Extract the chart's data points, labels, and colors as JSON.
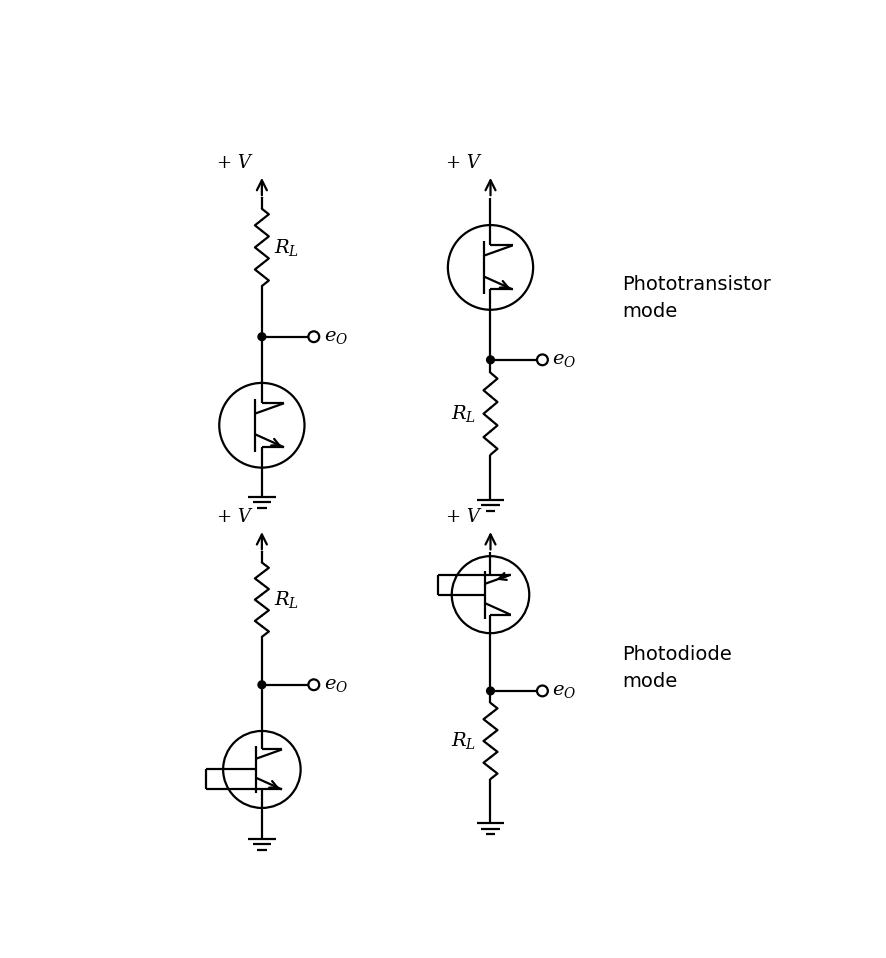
{
  "bg_color": "#ffffff",
  "line_color": "#000000",
  "lw": 1.6,
  "fig_w": 8.86,
  "fig_h": 9.58,
  "dpi": 100,
  "label_V": "+ V",
  "label_RL": "$R_L$",
  "label_eo": "$e_O$",
  "label_pt_mode": "Phototransistor\nmode",
  "label_pd_mode": "Photodiode\nmode"
}
